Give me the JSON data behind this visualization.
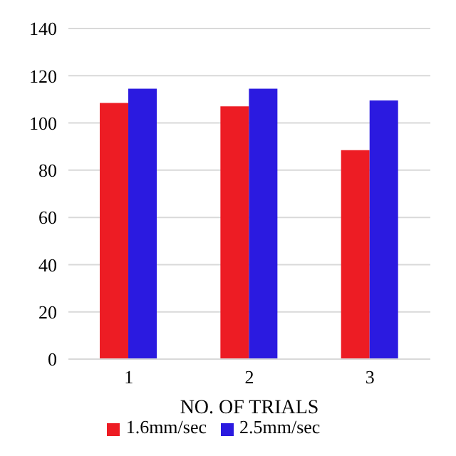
{
  "chart_data": {
    "type": "bar",
    "xlabel": "NO. OF TRIALS",
    "categories": [
      "1",
      "2",
      "3"
    ],
    "series": [
      {
        "name": "1.6mm/sec",
        "color": "#ed1c24",
        "values": [
          108.5,
          107,
          88.5
        ]
      },
      {
        "name": "2.5mm/sec",
        "color": "#2b1ae0",
        "values": [
          114.5,
          114.5,
          109.5
        ]
      }
    ],
    "ylim": [
      0,
      140
    ],
    "yticks": [
      0,
      20,
      40,
      60,
      80,
      100,
      120,
      140
    ],
    "grid": "y",
    "legend": "bottom"
  }
}
